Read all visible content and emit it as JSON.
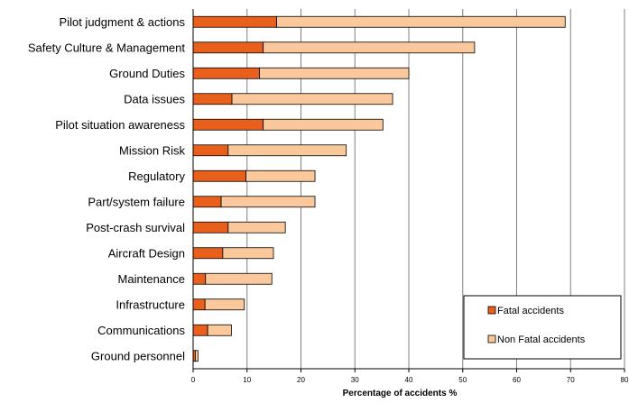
{
  "chart_data": {
    "type": "bar",
    "orientation": "horizontal",
    "stacked": true,
    "categories": [
      "Pilot judgment & actions",
      "Safety Culture & Management",
      "Ground Duties",
      "Data issues",
      "Pilot situation awareness",
      "Mission Risk",
      "Regulatory",
      "Part/system failure",
      "Post-crash survival",
      "Aircraft Design",
      "Maintenance",
      "Infrastructure",
      "Communications",
      "Ground personnel"
    ],
    "series": [
      {
        "name": "Fatal accidents",
        "color": "#e8601c",
        "values": [
          15.5,
          13,
          12.3,
          7.2,
          13,
          6.5,
          9.8,
          5.2,
          6.5,
          5.5,
          2.3,
          2.2,
          2.7,
          0.4
        ]
      },
      {
        "name": "Non Fatal accidents",
        "color": "#fbc89c",
        "values": [
          53.5,
          39.2,
          27.7,
          29.8,
          22.2,
          21.9,
          12.8,
          17.4,
          10.6,
          9.4,
          12.3,
          7.3,
          4.4,
          0.5
        ]
      }
    ],
    "xlabel": "Percentage of accidents %",
    "xlim": [
      0,
      80
    ],
    "xticks": [
      "0",
      "10",
      "20",
      "30",
      "40",
      "50",
      "60",
      "70",
      "80"
    ],
    "grid": "vertical",
    "legend_position": "bottom-right"
  }
}
